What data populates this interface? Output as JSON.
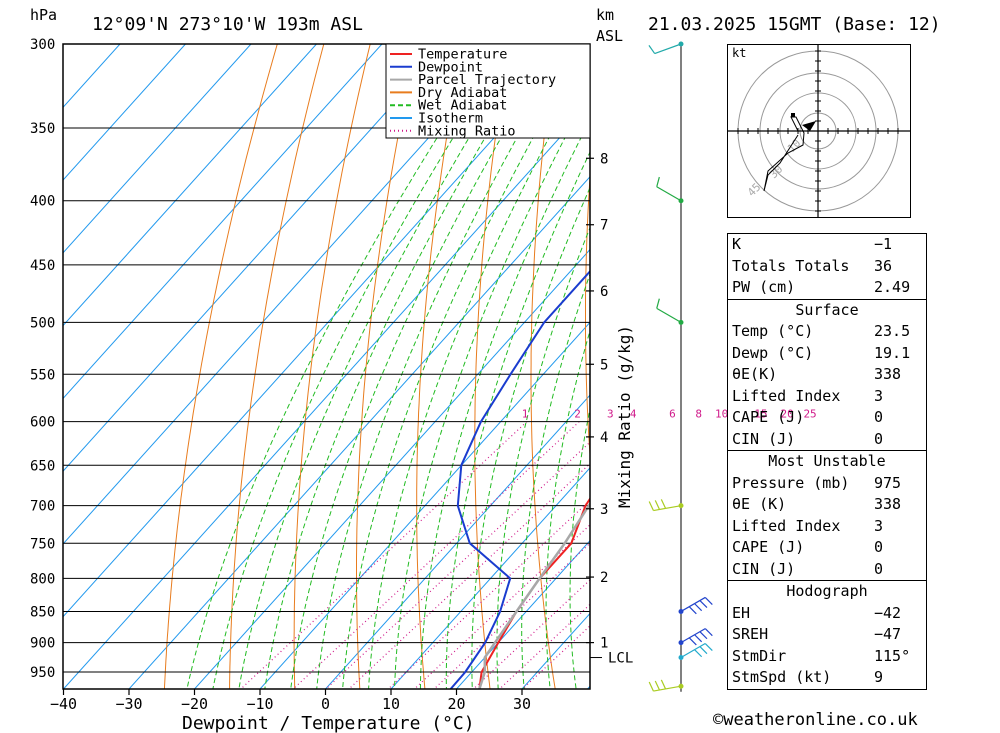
{
  "header": {
    "left_unit": "hPa",
    "location": "12°09'N 273°10'W 193m ASL",
    "km_label": "km",
    "asl_label": "ASL",
    "datetime": "21.03.2025 15GMT (Base: 12)"
  },
  "chart_data": {
    "type": "line",
    "title": "12°09'N 273°10'W 193m ASL",
    "xlabel": "Dewpoint / Temperature (°C)",
    "ylabel": "hPa",
    "right_ylabel": "Mixing Ratio (g/kg)",
    "x_ticks": [
      -40,
      -30,
      -20,
      -10,
      0,
      10,
      20,
      30
    ],
    "x_tick_labels": [
      "−40",
      "−30",
      "−20",
      "−10",
      "0",
      "10",
      "20",
      "30"
    ],
    "pressure_levels": [
      300,
      350,
      400,
      450,
      500,
      550,
      600,
      650,
      700,
      750,
      800,
      850,
      900,
      950
    ],
    "km_ticks": [
      {
        "km": "8",
        "p": 370
      },
      {
        "km": "7",
        "p": 418
      },
      {
        "km": "6",
        "p": 472
      },
      {
        "km": "5",
        "p": 540
      },
      {
        "km": "4",
        "p": 617
      },
      {
        "km": "3",
        "p": 704
      },
      {
        "km": "2",
        "p": 798
      },
      {
        "km": "1",
        "p": 900
      }
    ],
    "lcl_label": "LCL",
    "lcl_pressure": 925,
    "mixing_ratio_labels": [
      {
        "label": "1",
        "t": -6
      },
      {
        "label": "2",
        "t": 2
      },
      {
        "label": "3",
        "t": 7
      },
      {
        "label": "4",
        "t": 10.5
      },
      {
        "label": "6",
        "t": 16.5
      },
      {
        "label": "8",
        "t": 20.5
      },
      {
        "label": "10",
        "t": 23.5
      },
      {
        "label": "15",
        "t": 29.5
      },
      {
        "label": "20",
        "t": 33.5
      },
      {
        "label": "25",
        "t": 37
      }
    ],
    "legend": [
      {
        "name": "Temperature",
        "color": "#ee2222",
        "style": "solid"
      },
      {
        "name": "Dewpoint",
        "color": "#1a3ccf",
        "style": "solid"
      },
      {
        "name": "Parcel Trajectory",
        "color": "#a8a8a8",
        "style": "solid"
      },
      {
        "name": "Dry Adiabat",
        "color": "#e87c1e",
        "style": "solid"
      },
      {
        "name": "Wet Adiabat",
        "color": "#22bb22",
        "style": "dashed"
      },
      {
        "name": "Isotherm",
        "color": "#2299ee",
        "style": "solid"
      },
      {
        "name": "Mixing Ratio",
        "color": "#d01a8a",
        "style": "dotted"
      }
    ],
    "series": [
      {
        "name": "Temperature",
        "color": "#ee2222",
        "points": [
          [
            -4,
            300
          ],
          [
            -3,
            350
          ],
          [
            2,
            400
          ],
          [
            5,
            450
          ],
          [
            7.5,
            500
          ],
          [
            9.5,
            550
          ],
          [
            11.5,
            600
          ],
          [
            13,
            650
          ],
          [
            14.5,
            700
          ],
          [
            17.5,
            750
          ],
          [
            17.5,
            800
          ],
          [
            18.5,
            850
          ],
          [
            20,
            900
          ],
          [
            21.5,
            950
          ],
          [
            23.5,
            980
          ]
        ]
      },
      {
        "name": "Dewpoint",
        "color": "#1a3ccf",
        "points": [
          [
            -3,
            300
          ],
          [
            -4,
            350
          ],
          [
            -17,
            400
          ],
          [
            -17,
            450
          ],
          [
            -17,
            500
          ],
          [
            -15,
            550
          ],
          [
            -13,
            600
          ],
          [
            -10,
            650
          ],
          [
            -5,
            700
          ],
          [
            2,
            750
          ],
          [
            13,
            800
          ],
          [
            16,
            850
          ],
          [
            18,
            900
          ],
          [
            19,
            950
          ],
          [
            19.1,
            980
          ]
        ]
      },
      {
        "name": "Parcel Trajectory",
        "color": "#a8a8a8",
        "points": [
          [
            -2,
            300
          ],
          [
            0,
            350
          ],
          [
            3,
            400
          ],
          [
            5.5,
            450
          ],
          [
            8,
            500
          ],
          [
            10,
            550
          ],
          [
            12,
            600
          ],
          [
            13.5,
            650
          ],
          [
            15,
            700
          ],
          [
            16.5,
            750
          ],
          [
            17.5,
            800
          ],
          [
            18.5,
            850
          ],
          [
            19.5,
            900
          ],
          [
            20,
            925
          ],
          [
            22,
            950
          ],
          [
            23.5,
            980
          ]
        ]
      }
    ],
    "xlim": [
      -40,
      40
    ],
    "ylim": [
      980,
      300
    ]
  },
  "hodograph": {
    "unit_label": "kt",
    "ring_labels": [
      "10",
      "30",
      "45"
    ]
  },
  "wind_barbs": [
    {
      "p": 300,
      "dir": 250,
      "spd": 10,
      "color": "#22aaaa"
    },
    {
      "p": 400,
      "dir": 300,
      "spd": 10,
      "color": "#22aa44"
    },
    {
      "p": 500,
      "dir": 300,
      "spd": 10,
      "color": "#22aa44"
    },
    {
      "p": 700,
      "dir": 260,
      "spd": 25,
      "color": "#aacc22"
    },
    {
      "p": 850,
      "dir": 60,
      "spd": 35,
      "color": "#2244cc"
    },
    {
      "p": 900,
      "dir": 60,
      "spd": 35,
      "color": "#2244cc"
    },
    {
      "p": 925,
      "dir": 60,
      "spd": 30,
      "color": "#22aacc"
    },
    {
      "p": 975,
      "dir": 260,
      "spd": 25,
      "color": "#aacc22"
    }
  ],
  "indices": {
    "rows": [
      {
        "label": "K",
        "value": "−1"
      },
      {
        "label": "Totals Totals",
        "value": "36"
      },
      {
        "label": "PW (cm)",
        "value": "2.49"
      }
    ],
    "surface": {
      "title": "Surface",
      "rows": [
        {
          "label": "Temp (°C)",
          "value": "23.5"
        },
        {
          "label": "Dewp (°C)",
          "value": "19.1"
        },
        {
          "label": "θE(K)",
          "value": "338"
        },
        {
          "label": "Lifted Index",
          "value": "3"
        },
        {
          "label": "CAPE (J)",
          "value": "0"
        },
        {
          "label": "CIN (J)",
          "value": "0"
        }
      ]
    },
    "most_unstable": {
      "title": "Most Unstable",
      "rows": [
        {
          "label": "Pressure (mb)",
          "value": "975"
        },
        {
          "label": "θE (K)",
          "value": "338"
        },
        {
          "label": "Lifted Index",
          "value": "3"
        },
        {
          "label": "CAPE (J)",
          "value": "0"
        },
        {
          "label": "CIN (J)",
          "value": "0"
        }
      ]
    },
    "hodograph": {
      "title": "Hodograph",
      "rows": [
        {
          "label": "EH",
          "value": "−42"
        },
        {
          "label": "SREH",
          "value": "−47"
        },
        {
          "label": "StmDir",
          "value": "115°"
        },
        {
          "label": "StmSpd (kt)",
          "value": "9"
        }
      ]
    }
  },
  "footer": {
    "copyright": "©weatheronline.co.uk"
  },
  "colors": {
    "temperature": "#ee2222",
    "dewpoint": "#1a3ccf",
    "parcel": "#a8a8a8",
    "dry_adiabat": "#e87c1e",
    "wet_adiabat": "#22bb22",
    "isotherm": "#2299ee",
    "mixing_ratio": "#d01a8a"
  }
}
